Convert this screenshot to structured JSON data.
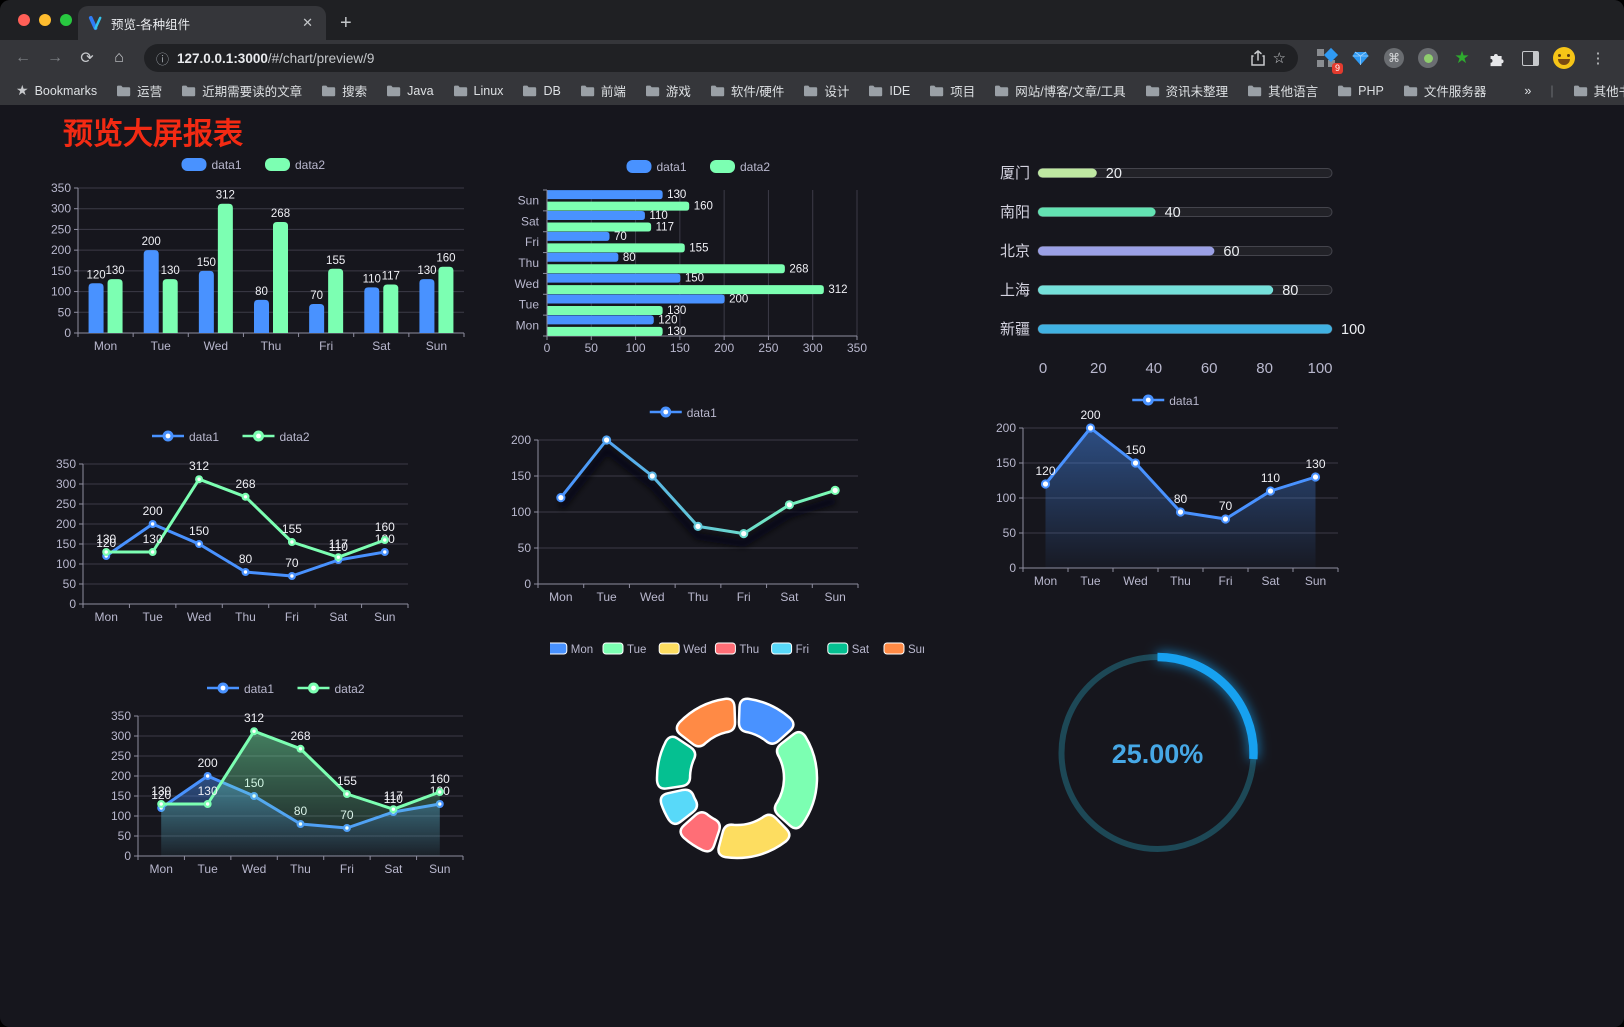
{
  "browser": {
    "traffic_lights": [
      "#ff5f57",
      "#febc2e",
      "#28c840"
    ],
    "tab": {
      "title": "预览-各种组件",
      "close_label": "✕"
    },
    "new_tab_label": "+",
    "nav": {
      "back": "←",
      "forward": "→",
      "reload": "⟳",
      "home": "⌂"
    },
    "url_host": "127.0.0.1:3000",
    "url_path": "/#/chart/preview/9",
    "extension_badge": "9",
    "command_glyph": "⌘",
    "kebab_glyph": "⋮",
    "star_glyph": "☆",
    "greenstar_glyph": "★",
    "info_glyph": "ⓘ",
    "bookmarks_bar": {
      "bookmarks_label": "Bookmarks",
      "folders": [
        "运营",
        "近期需要读的文章",
        "搜索",
        "Java",
        "Linux",
        "DB",
        "前端",
        "游戏",
        "软件/硬件",
        "设计",
        "IDE",
        "项目",
        "网站/博客/文章/工具",
        "资讯未整理",
        "其他语言",
        "PHP",
        "文件服务器"
      ],
      "overflow_label": "»",
      "other_bookmarks_label": "其他书签"
    }
  },
  "page": {
    "title": "预览大屏报表",
    "title_color": "#f32a13",
    "background": "#16161d"
  },
  "theme": {
    "axis_label": "#b9b8ce",
    "axis_line": "#8f8ea0",
    "grid_line": "#3c3b47",
    "value_label": "#f0f0f5",
    "legend_text": "#b9b8ce"
  },
  "chart_data": [
    {
      "mount": "c1",
      "type": "bar",
      "orientation": "vertical",
      "categories": [
        "Mon",
        "Tue",
        "Wed",
        "Thu",
        "Fri",
        "Sat",
        "Sun"
      ],
      "series": [
        {
          "name": "data1",
          "color": "#4992ff",
          "values": [
            120,
            200,
            150,
            80,
            70,
            110,
            130
          ]
        },
        {
          "name": "data2",
          "color": "#7cffb2",
          "values": [
            130,
            130,
            312,
            268,
            155,
            117,
            160
          ]
        }
      ],
      "ylim": [
        0,
        350
      ],
      "yticks": [
        0,
        50,
        100,
        150,
        200,
        250,
        300,
        350
      ],
      "value_labels": true,
      "legend_position": "top",
      "grid": true
    },
    {
      "mount": "c2",
      "type": "bar",
      "orientation": "horizontal",
      "categories": [
        "Sun",
        "Sat",
        "Fri",
        "Thu",
        "Wed",
        "Tue",
        "Mon"
      ],
      "series": [
        {
          "name": "data1",
          "color": "#4992ff",
          "values": [
            130,
            110,
            70,
            80,
            150,
            200,
            120
          ]
        },
        {
          "name": "data2",
          "color": "#7cffb2",
          "values": [
            160,
            117,
            155,
            268,
            312,
            130,
            130
          ]
        }
      ],
      "xlim": [
        0,
        350
      ],
      "xticks": [
        0,
        50,
        100,
        150,
        200,
        250,
        300,
        350
      ],
      "value_labels": true,
      "legend_position": "top",
      "grid": true
    },
    {
      "mount": "c3",
      "type": "progress",
      "items": [
        {
          "label": "厦门",
          "value": 20,
          "color": "#bfe8a2"
        },
        {
          "label": "南阳",
          "value": 40,
          "color": "#63e2b2"
        },
        {
          "label": "北京",
          "value": 60,
          "color": "#9ba0e5"
        },
        {
          "label": "上海",
          "value": 80,
          "color": "#75e0da"
        },
        {
          "label": "新疆",
          "value": 100,
          "color": "#41b2e2"
        }
      ],
      "max": 100,
      "xticks": [
        0,
        20,
        40,
        60,
        80,
        100
      ]
    },
    {
      "mount": "c4",
      "type": "line",
      "categories": [
        "Mon",
        "Tue",
        "Wed",
        "Thu",
        "Fri",
        "Sat",
        "Sun"
      ],
      "series": [
        {
          "name": "data1",
          "color": "#4992ff",
          "values": [
            120,
            200,
            150,
            80,
            70,
            110,
            130
          ],
          "marker": "dot"
        },
        {
          "name": "data2",
          "color": "#7cffb2",
          "values": [
            130,
            130,
            312,
            268,
            155,
            117,
            160
          ],
          "marker": "dot"
        }
      ],
      "ylim": [
        0,
        350
      ],
      "yticks": [
        0,
        50,
        100,
        150,
        200,
        250,
        300,
        350
      ],
      "value_labels": true,
      "legend_position": "top",
      "grid": true
    },
    {
      "mount": "c5",
      "type": "line",
      "categories": [
        "Mon",
        "Tue",
        "Wed",
        "Thu",
        "Fri",
        "Sat",
        "Sun"
      ],
      "series": [
        {
          "name": "data1",
          "gradient": [
            "#4992ff",
            "#7cffb2"
          ],
          "values": [
            120,
            200,
            150,
            80,
            70,
            110,
            130
          ],
          "marker": "hollow",
          "shadow": true
        }
      ],
      "ylim": [
        0,
        200
      ],
      "yticks": [
        0,
        50,
        100,
        150,
        200
      ],
      "value_labels": false,
      "legend_position": "top",
      "grid": true
    },
    {
      "mount": "c6",
      "type": "line",
      "categories": [
        "Mon",
        "Tue",
        "Wed",
        "Thu",
        "Fri",
        "Sat",
        "Sun"
      ],
      "series": [
        {
          "name": "data1",
          "color": "#4992ff",
          "values": [
            120,
            200,
            150,
            80,
            70,
            110,
            130
          ],
          "marker": "hollow",
          "area": true
        }
      ],
      "ylim": [
        0,
        200
      ],
      "yticks": [
        0,
        50,
        100,
        150,
        200
      ],
      "value_labels": true,
      "legend_position": "top",
      "grid": true
    },
    {
      "mount": "c7",
      "type": "line",
      "categories": [
        "Mon",
        "Tue",
        "Wed",
        "Thu",
        "Fri",
        "Sat",
        "Sun"
      ],
      "series": [
        {
          "name": "data1",
          "color": "#4992ff",
          "values": [
            120,
            200,
            150,
            80,
            70,
            110,
            130
          ],
          "marker": "dot",
          "area": true
        },
        {
          "name": "data2",
          "color": "#7cffb2",
          "values": [
            130,
            130,
            312,
            268,
            155,
            117,
            160
          ],
          "marker": "dot",
          "area": true
        }
      ],
      "ylim": [
        0,
        350
      ],
      "yticks": [
        0,
        50,
        100,
        150,
        200,
        250,
        300,
        350
      ],
      "value_labels": true,
      "legend_position": "top",
      "grid": true
    },
    {
      "mount": "c8",
      "type": "pie",
      "donut": true,
      "slices": [
        {
          "label": "Mon",
          "value": 120,
          "color": "#4992ff"
        },
        {
          "label": "Tue",
          "value": 200,
          "color": "#7cffb2"
        },
        {
          "label": "Wed",
          "value": 150,
          "color": "#fddd60"
        },
        {
          "label": "Thu",
          "value": 80,
          "color": "#ff6e76"
        },
        {
          "label": "Fri",
          "value": 70,
          "color": "#58d9f9"
        },
        {
          "label": "Sat",
          "value": 110,
          "color": "#05c091"
        },
        {
          "label": "Sun",
          "value": 130,
          "color": "#ff8a45"
        }
      ],
      "legend_position": "top",
      "border_color": "#ffffff"
    },
    {
      "mount": "c9",
      "type": "gauge",
      "value_label": "25.00%",
      "percent": 25,
      "sweep_fraction": 0.26,
      "track_color": "#1d4856",
      "progress_color": "#17a1f0",
      "text_color": "#46a8e6"
    }
  ]
}
